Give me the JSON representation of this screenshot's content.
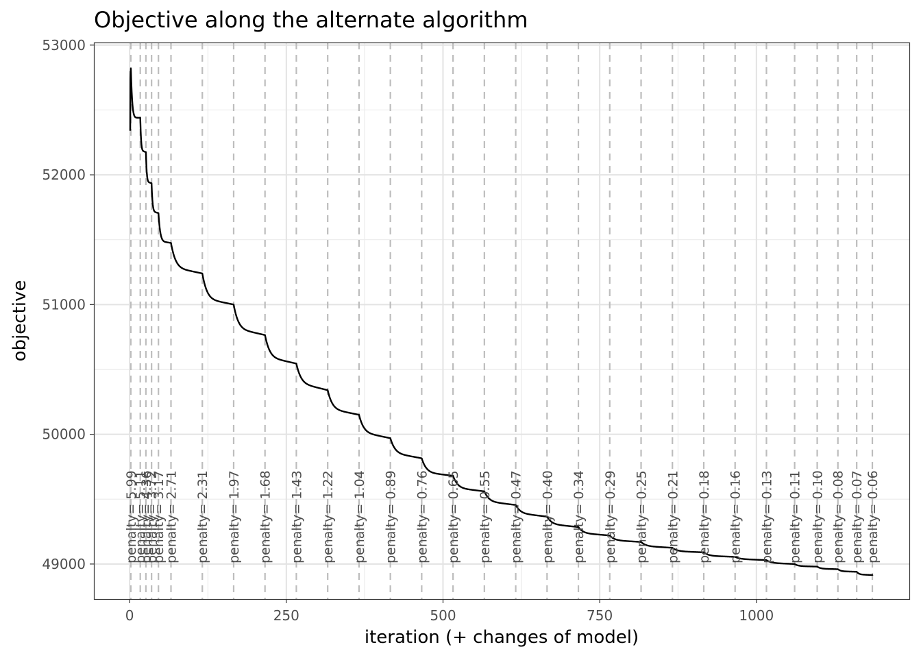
{
  "chart_data": {
    "type": "line",
    "title": "Objective along the alternate algorithm",
    "xlabel": "iteration (+ changes of model)",
    "ylabel": "objective",
    "xlim": [
      -57,
      1244
    ],
    "ylim": [
      48730,
      53020
    ],
    "x_ticks": [
      0,
      250,
      500,
      750,
      1000
    ],
    "x_tick_labels": [
      "0",
      "250",
      "500",
      "750",
      "1000"
    ],
    "y_ticks": [
      49000,
      50000,
      51000,
      52000,
      53000
    ],
    "y_tick_labels": [
      "49000",
      "50000",
      "51000",
      "52000",
      "53000"
    ],
    "grid": true,
    "line_color": "#000000",
    "model_changes": [
      {
        "x": 2,
        "label": "penalty= 5.99"
      },
      {
        "x": 17,
        "label": "penalty= 5.11"
      },
      {
        "x": 26,
        "label": "penalty= 4.36"
      },
      {
        "x": 35,
        "label": "penalty= 3.72"
      },
      {
        "x": 46,
        "label": "penalty= 3.17"
      },
      {
        "x": 66,
        "label": "penalty= 2.71"
      },
      {
        "x": 116,
        "label": "penalty= 2.31"
      },
      {
        "x": 166,
        "label": "penalty= 1.97"
      },
      {
        "x": 216,
        "label": "penalty= 1.68"
      },
      {
        "x": 266,
        "label": "penalty= 1.43"
      },
      {
        "x": 316,
        "label": "penalty= 1.22"
      },
      {
        "x": 366,
        "label": "penalty= 1.04"
      },
      {
        "x": 416,
        "label": "penalty= 0.89"
      },
      {
        "x": 466,
        "label": "penalty= 0.76"
      },
      {
        "x": 516,
        "label": "penalty= 0.65"
      },
      {
        "x": 566,
        "label": "penalty= 0.55"
      },
      {
        "x": 616,
        "label": "penalty= 0.47"
      },
      {
        "x": 666,
        "label": "penalty= 0.40"
      },
      {
        "x": 716,
        "label": "penalty= 0.34"
      },
      {
        "x": 766,
        "label": "penalty= 0.29"
      },
      {
        "x": 816,
        "label": "penalty= 0.25"
      },
      {
        "x": 866,
        "label": "penalty= 0.21"
      },
      {
        "x": 916,
        "label": "penalty= 0.18"
      },
      {
        "x": 966,
        "label": "penalty= 0.16"
      },
      {
        "x": 1016,
        "label": "penalty= 0.13"
      },
      {
        "x": 1061,
        "label": "penalty= 0.11"
      },
      {
        "x": 1097,
        "label": "penalty= 0.10"
      },
      {
        "x": 1130,
        "label": "penalty= 0.08"
      },
      {
        "x": 1160,
        "label": "penalty= 0.07"
      },
      {
        "x": 1185,
        "label": "penalty= 0.06"
      }
    ],
    "series": [
      {
        "segments": [
          {
            "start": 1,
            "end": 2,
            "from": 52340,
            "to": 52800,
            "tail": 52800
          },
          {
            "start": 2,
            "end": 17,
            "from": 52820,
            "to": 52440,
            "tail": 52440
          },
          {
            "start": 17,
            "end": 26,
            "from": 52440,
            "to": 52190,
            "tail": 52175
          },
          {
            "start": 26,
            "end": 35,
            "from": 52175,
            "to": 51950,
            "tail": 51935
          },
          {
            "start": 35,
            "end": 46,
            "from": 51935,
            "to": 51720,
            "tail": 51705
          },
          {
            "start": 46,
            "end": 66,
            "from": 51705,
            "to": 51490,
            "tail": 51475
          },
          {
            "start": 66,
            "end": 116,
            "from": 51475,
            "to": 51290,
            "tail": 51240
          },
          {
            "start": 116,
            "end": 166,
            "from": 51240,
            "to": 51050,
            "tail": 51000
          },
          {
            "start": 166,
            "end": 216,
            "from": 51000,
            "to": 50820,
            "tail": 50765
          },
          {
            "start": 216,
            "end": 266,
            "from": 50765,
            "to": 50600,
            "tail": 50545
          },
          {
            "start": 266,
            "end": 316,
            "from": 50545,
            "to": 50400,
            "tail": 50340
          },
          {
            "start": 316,
            "end": 366,
            "from": 50340,
            "to": 50200,
            "tail": 50150
          },
          {
            "start": 366,
            "end": 416,
            "from": 50150,
            "to": 50020,
            "tail": 49970
          },
          {
            "start": 416,
            "end": 466,
            "from": 49970,
            "to": 49860,
            "tail": 49815
          },
          {
            "start": 466,
            "end": 516,
            "from": 49815,
            "to": 49710,
            "tail": 49680
          },
          {
            "start": 516,
            "end": 566,
            "from": 49680,
            "to": 49590,
            "tail": 49560
          },
          {
            "start": 566,
            "end": 616,
            "from": 49560,
            "to": 49485,
            "tail": 49455
          },
          {
            "start": 616,
            "end": 666,
            "from": 49455,
            "to": 49395,
            "tail": 49365
          },
          {
            "start": 666,
            "end": 716,
            "from": 49365,
            "to": 49310,
            "tail": 49285
          },
          {
            "start": 716,
            "end": 766,
            "from": 49285,
            "to": 49240,
            "tail": 49220
          },
          {
            "start": 766,
            "end": 816,
            "from": 49220,
            "to": 49185,
            "tail": 49170
          },
          {
            "start": 816,
            "end": 866,
            "from": 49170,
            "to": 49140,
            "tail": 49125
          },
          {
            "start": 866,
            "end": 916,
            "from": 49125,
            "to": 49100,
            "tail": 49090
          },
          {
            "start": 916,
            "end": 966,
            "from": 49090,
            "to": 49065,
            "tail": 49055
          },
          {
            "start": 966,
            "end": 1016,
            "from": 49055,
            "to": 49040,
            "tail": 49030
          },
          {
            "start": 1016,
            "end": 1061,
            "from": 49030,
            "to": 49010,
            "tail": 49000
          },
          {
            "start": 1061,
            "end": 1097,
            "from": 49000,
            "to": 48985,
            "tail": 48980
          },
          {
            "start": 1097,
            "end": 1130,
            "from": 48980,
            "to": 48965,
            "tail": 48960
          },
          {
            "start": 1130,
            "end": 1160,
            "from": 48960,
            "to": 48945,
            "tail": 48940
          },
          {
            "start": 1160,
            "end": 1185,
            "from": 48940,
            "to": 48920,
            "tail": 48915
          },
          {
            "start": 1185,
            "end": 1185,
            "from": 48915,
            "to": 48910,
            "tail": 48910
          }
        ]
      }
    ]
  }
}
